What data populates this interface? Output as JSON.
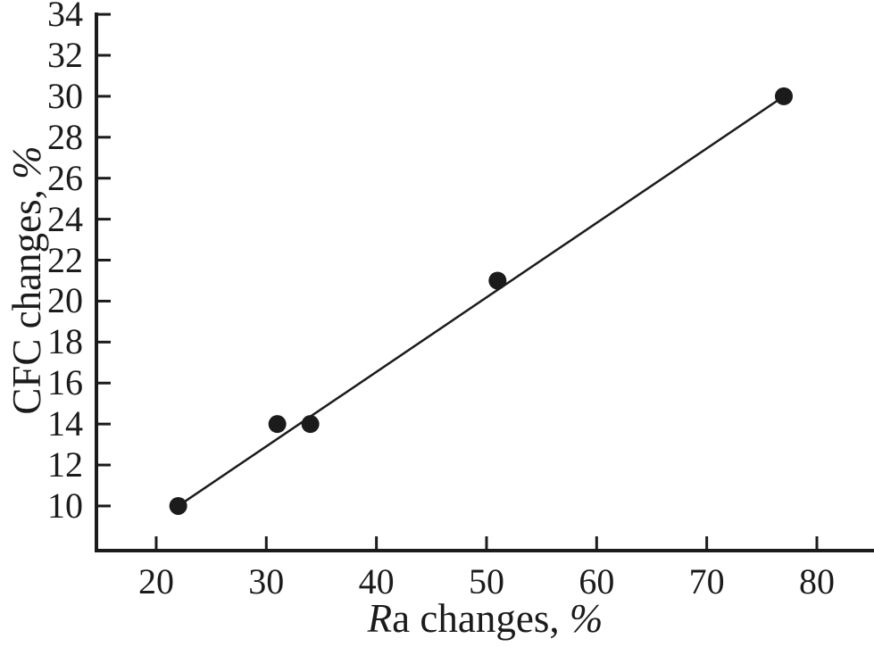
{
  "figure": {
    "background": "#ffffff",
    "ink_color": "#1b1b1b"
  },
  "chart_data": {
    "type": "scatter",
    "title": "",
    "xlabel": "Ra changes, %",
    "ylabel": "CFC changes, %",
    "xlabel_parts": {
      "italic_prefix": "R",
      "regular": "a changes, ",
      "italic_suffix": "%"
    },
    "ylabel_parts": {
      "regular": "CFC changes, ",
      "italic_suffix": "%"
    },
    "points": [
      [
        22,
        10
      ],
      [
        31,
        14
      ],
      [
        34,
        14
      ],
      [
        51,
        21
      ],
      [
        77,
        30
      ]
    ],
    "trend_line": {
      "from": [
        22,
        10
      ],
      "to": [
        77,
        30
      ]
    },
    "xticks": [
      20,
      30,
      40,
      50,
      60,
      70,
      80
    ],
    "yticks": [
      10,
      12,
      14,
      16,
      18,
      20,
      22,
      24,
      26,
      28,
      30,
      32,
      34
    ],
    "xlim": [
      14.57,
      85.19
    ],
    "ylim": [
      7.82,
      34.09
    ],
    "grid": false,
    "legend": false,
    "marker": {
      "shape": "filled-circle",
      "radius_px": 10,
      "color": "#1b1b1b"
    }
  }
}
